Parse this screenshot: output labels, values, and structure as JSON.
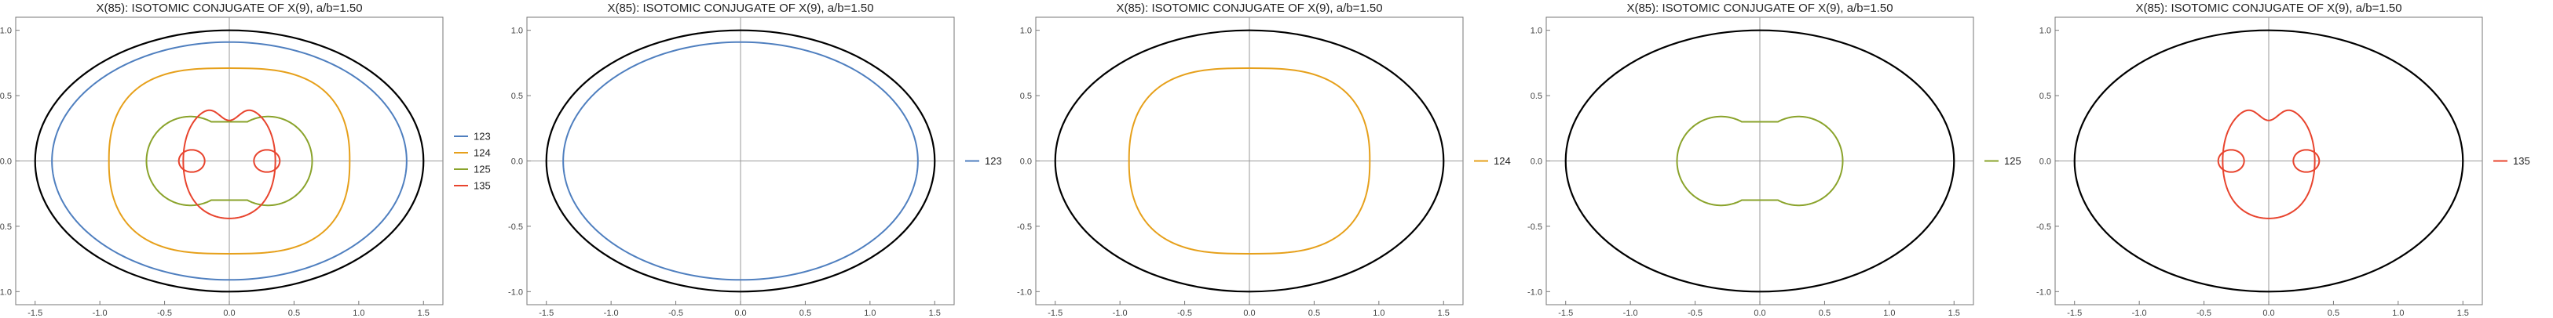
{
  "figure_title": "X(85): ISOTOMIC CONJUGATE OF X(9), a/b=1.50",
  "colors": {
    "ellipse": "#000000",
    "123": "#4f7fbf",
    "124": "#e6a01b",
    "125": "#8aa32b",
    "135": "#e8442e"
  },
  "chart_data": [
    {
      "type": "line",
      "title": "X(85): ISOTOMIC CONJUGATE OF X(9), a/b=1.50",
      "xlim": [
        -1.65,
        1.65
      ],
      "ylim": [
        -1.1,
        1.1
      ],
      "xticks": [
        "-1.5",
        "-1.0",
        "-0.5",
        "0.0",
        "0.5",
        "1.0",
        "1.5"
      ],
      "yticks": [
        "-1.0",
        "-0.5",
        "0.0",
        "0.5",
        "1.0"
      ],
      "legend": "right",
      "ellipse": {
        "a": 1.5,
        "b": 1.0
      },
      "series": [
        {
          "name": "123",
          "color": "#4f7fbf",
          "shape": "ellipse",
          "rx": 1.37,
          "ry": 0.91
        },
        {
          "name": "124",
          "color": "#e6a01b",
          "shape": "rounded",
          "rx": 0.93,
          "ry": 0.71
        },
        {
          "name": "125",
          "color": "#8aa32b",
          "shape": "twolobe",
          "lobe_cx": 0.3,
          "lobe_r": 0.34,
          "y_meet": 0.34
        },
        {
          "name": "135",
          "color": "#e8442e",
          "shape": "loops",
          "outer_r": 0.44,
          "loop_cx": 0.29,
          "loop_r": 0.1
        }
      ]
    },
    {
      "type": "line",
      "title": "X(85): ISOTOMIC CONJUGATE OF X(9), a/b=1.50",
      "xlim": [
        -1.65,
        1.65
      ],
      "ylim": [
        -1.1,
        1.1
      ],
      "xticks": [
        "-1.5",
        "-1.0",
        "-0.5",
        "0.0",
        "0.5",
        "1.0",
        "1.5"
      ],
      "yticks": [
        "-1.0",
        "-0.5",
        "0.0",
        "0.5",
        "1.0"
      ],
      "legend": "right",
      "ellipse": {
        "a": 1.5,
        "b": 1.0
      },
      "series": [
        {
          "name": "123",
          "color": "#4f7fbf",
          "shape": "ellipse",
          "rx": 1.37,
          "ry": 0.91
        }
      ]
    },
    {
      "type": "line",
      "title": "X(85): ISOTOMIC CONJUGATE OF X(9), a/b=1.50",
      "xlim": [
        -1.65,
        1.65
      ],
      "ylim": [
        -1.1,
        1.1
      ],
      "xticks": [
        "-1.5",
        "-1.0",
        "-0.5",
        "0.0",
        "0.5",
        "1.0",
        "1.5"
      ],
      "yticks": [
        "-1.0",
        "-0.5",
        "0.0",
        "0.5",
        "1.0"
      ],
      "legend": "right",
      "ellipse": {
        "a": 1.5,
        "b": 1.0
      },
      "series": [
        {
          "name": "124",
          "color": "#e6a01b",
          "shape": "rounded",
          "rx": 0.93,
          "ry": 0.71
        }
      ]
    },
    {
      "type": "line",
      "title": "X(85): ISOTOMIC CONJUGATE OF X(9), a/b=1.50",
      "xlim": [
        -1.65,
        1.65
      ],
      "ylim": [
        -1.1,
        1.1
      ],
      "xticks": [
        "-1.5",
        "-1.0",
        "-0.5",
        "0.0",
        "0.5",
        "1.0",
        "1.5"
      ],
      "yticks": [
        "-1.0",
        "-0.5",
        "0.0",
        "0.5",
        "1.0"
      ],
      "legend": "right",
      "ellipse": {
        "a": 1.5,
        "b": 1.0
      },
      "series": [
        {
          "name": "125",
          "color": "#8aa32b",
          "shape": "twolobe",
          "lobe_cx": 0.3,
          "lobe_r": 0.34,
          "y_meet": 0.34
        }
      ]
    },
    {
      "type": "line",
      "title": "X(85): ISOTOMIC CONJUGATE OF X(9), a/b=1.50",
      "xlim": [
        -1.65,
        1.65
      ],
      "ylim": [
        -1.1,
        1.1
      ],
      "xticks": [
        "-1.5",
        "-1.0",
        "-0.5",
        "0.0",
        "0.5",
        "1.0",
        "1.5"
      ],
      "yticks": [
        "-1.0",
        "-0.5",
        "0.0",
        "0.5",
        "1.0"
      ],
      "legend": "right",
      "ellipse": {
        "a": 1.5,
        "b": 1.0
      },
      "series": [
        {
          "name": "135",
          "color": "#e8442e",
          "shape": "loops",
          "outer_r": 0.44,
          "loop_cx": 0.29,
          "loop_r": 0.1
        }
      ]
    }
  ]
}
